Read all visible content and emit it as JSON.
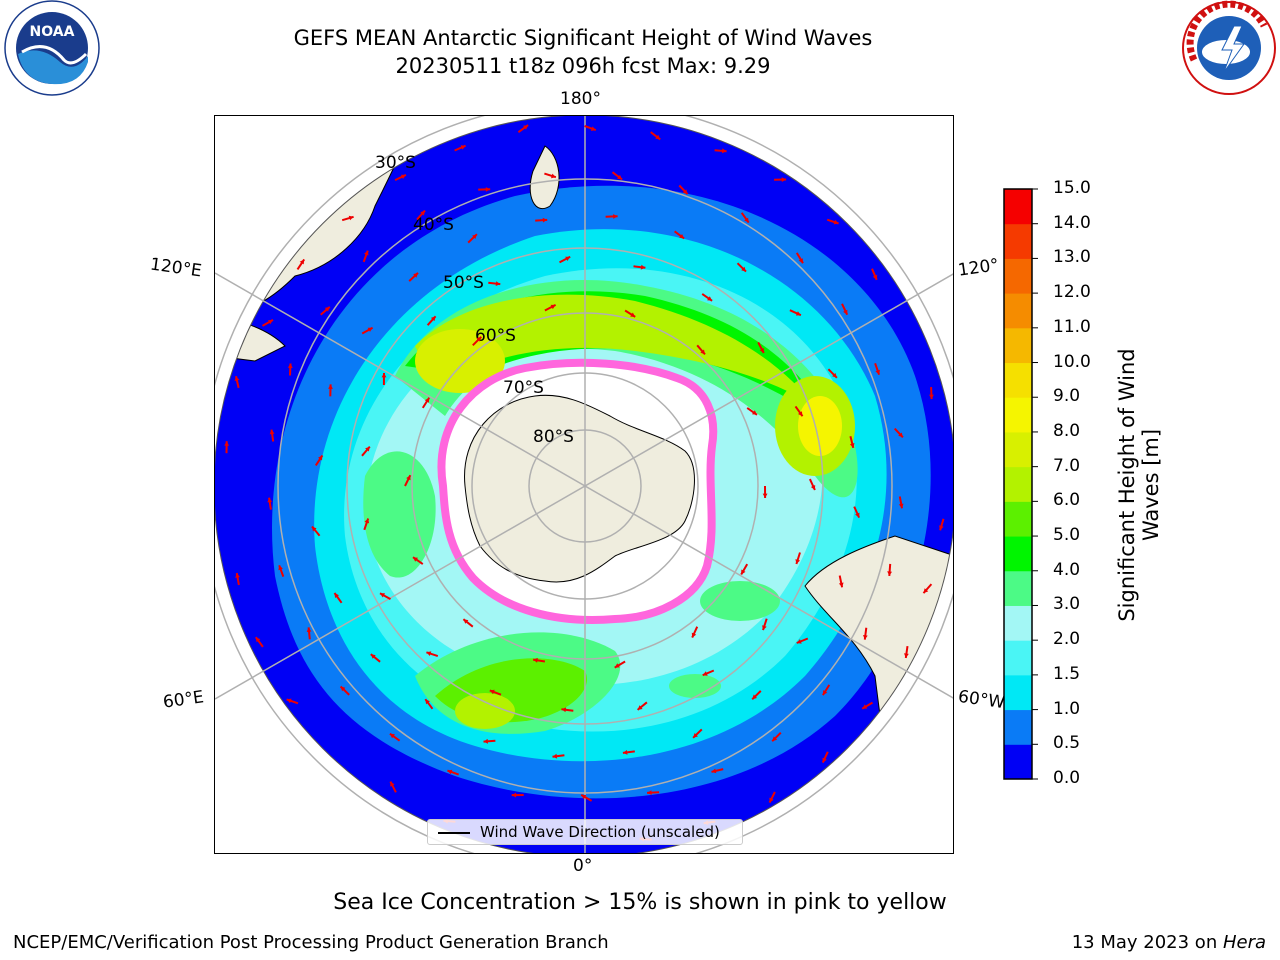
{
  "title": {
    "line1": "GEFS MEAN Antarctic Significant Height of Wind Waves",
    "line2": "20230511 t18z 096h fcst    Max: 9.29"
  },
  "logos": {
    "left": "NOAA",
    "right_text": "NATIONAL WEATHER SERVICE"
  },
  "map": {
    "projection": "south-polar-stereographic",
    "longitude_labels": {
      "top": "180°",
      "bottom": "0°",
      "left_upper": "120°E",
      "left_lower": "60°E",
      "right_upper": "120°",
      "right_lower": "60°W"
    },
    "latitude_labels": [
      "30°S",
      "40°S",
      "50°S",
      "60°S",
      "70°S",
      "80°S"
    ],
    "legend": "Wind Wave Direction (unscaled)",
    "colors": {
      "land": "#efedde",
      "ocean_low": "#0000f5",
      "sea_ice": "#ff66dd",
      "arrows": "#ee0000",
      "grid": "#b0b0b0"
    }
  },
  "colorbar": {
    "label": "Significant Height of Wind Waves [m]",
    "ticks": [
      "0.0",
      "0.5",
      "1.0",
      "1.5",
      "2.0",
      "3.0",
      "4.0",
      "5.0",
      "6.0",
      "7.0",
      "8.0",
      "9.0",
      "10.0",
      "11.0",
      "12.0",
      "13.0",
      "14.0",
      "15.0"
    ],
    "colors": [
      "#0000f5",
      "#0a7bf6",
      "#00e8f5",
      "#4af5f5",
      "#a3f7f5",
      "#4cfa86",
      "#00f500",
      "#5cf000",
      "#b3f200",
      "#d8f000",
      "#f5f500",
      "#f5e000",
      "#f5b800",
      "#f58c00",
      "#f56800",
      "#f53a00",
      "#f50000"
    ]
  },
  "caption": "Sea Ice Concentration > 15% is shown in pink to yellow",
  "footer": {
    "left": "NCEP/EMC/Verification Post Processing Product Generation Branch",
    "right_date": "13 May 2023 on ",
    "right_machine": "Hera"
  }
}
